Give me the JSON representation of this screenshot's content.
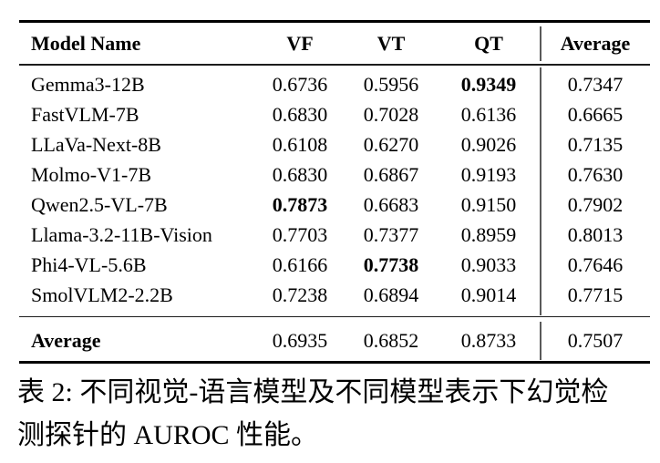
{
  "table": {
    "header": {
      "model_name": "Model Name",
      "vf": "VF",
      "vt": "VT",
      "qt": "QT",
      "average": "Average"
    },
    "rows": [
      {
        "name": "Gemma3-12B",
        "vf": "0.6736",
        "vt": "0.5956",
        "qt": "0.9349",
        "avg": "0.7347"
      },
      {
        "name": "FastVLM-7B",
        "vf": "0.6830",
        "vt": "0.7028",
        "qt": "0.6136",
        "avg": "0.6665"
      },
      {
        "name": "LLaVa-Next-8B",
        "vf": "0.6108",
        "vt": "0.6270",
        "qt": "0.9026",
        "avg": "0.7135"
      },
      {
        "name": "Molmo-V1-7B",
        "vf": "0.6830",
        "vt": "0.6867",
        "qt": "0.9193",
        "avg": "0.7630"
      },
      {
        "name": "Qwen2.5-VL-7B",
        "vf": "0.7873",
        "vt": "0.6683",
        "qt": "0.9150",
        "avg": "0.7902"
      },
      {
        "name": "Llama-3.2-11B-Vision",
        "vf": "0.7703",
        "vt": "0.7377",
        "qt": "0.8959",
        "avg": "0.8013"
      },
      {
        "name": "Phi4-VL-5.6B",
        "vf": "0.6166",
        "vt": "0.7738",
        "qt": "0.9033",
        "avg": "0.7646"
      },
      {
        "name": "SmolVLM2-2.2B",
        "vf": "0.7238",
        "vt": "0.6894",
        "qt": "0.9014",
        "avg": "0.7715"
      }
    ],
    "footer": {
      "name": "Average",
      "vf": "0.6935",
      "vt": "0.6852",
      "qt": "0.8733",
      "avg": "0.7507"
    },
    "bold_cells": [
      "rows.0.qt",
      "rows.4.vf",
      "rows.6.vt"
    ]
  },
  "caption": {
    "label": "表 2:",
    "line1": "表 2: 不同视觉-语言模型及不同模型表示下幻觉检",
    "line2": "测探针的 AUROC 性能。"
  },
  "colors": {
    "background": "#ffffff",
    "text": "#000000",
    "rule_heavy": "#000000",
    "rule_light": "#1c1c1c",
    "vline": "#5a5a5a"
  }
}
